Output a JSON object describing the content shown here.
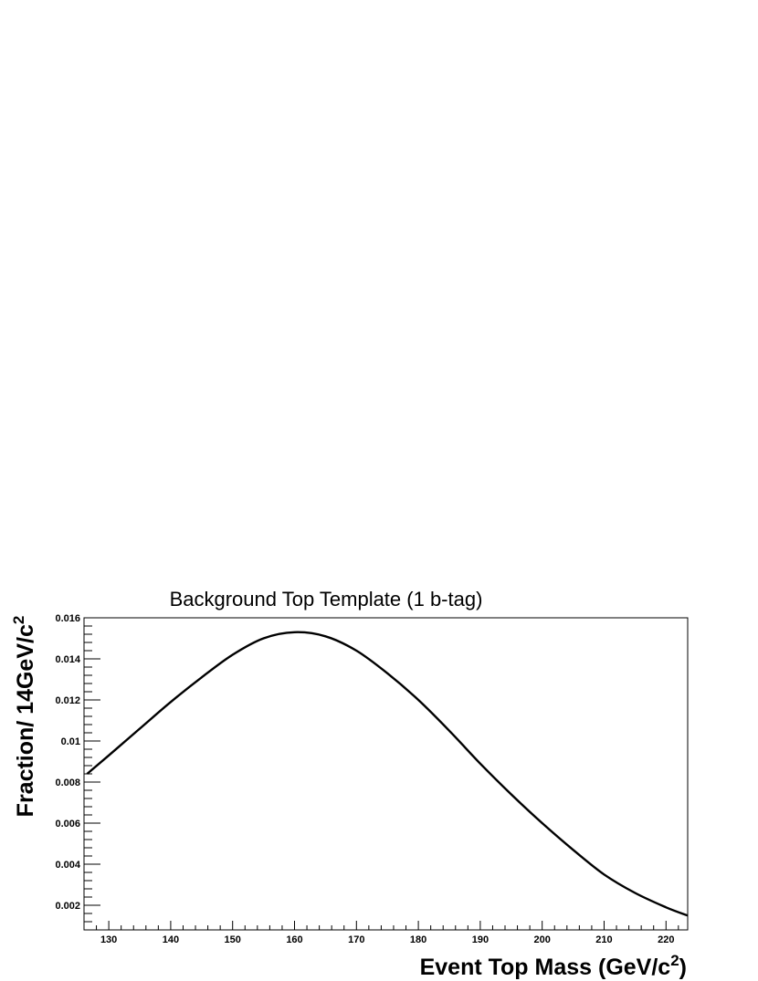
{
  "chart_data": {
    "type": "line",
    "title": "Background Top Template (1 b-tag)",
    "xlabel": "Event Top Mass (GeV/c",
    "xlabel_sup": "2",
    "xlabel_end": ")",
    "ylabel": "Fraction/ 14GeV/c",
    "ylabel_sup": "2",
    "xlim": [
      126,
      223.5
    ],
    "ylim": [
      0.0008,
      0.016
    ],
    "x_ticks": [
      130,
      140,
      150,
      160,
      170,
      180,
      190,
      200,
      210,
      220
    ],
    "x_tick_labels": [
      "130",
      "140",
      "150",
      "160",
      "170",
      "180",
      "190",
      "200",
      "210",
      "220"
    ],
    "y_ticks": [
      0.002,
      0.004,
      0.006,
      0.008,
      0.01,
      0.012,
      0.014,
      0.016
    ],
    "y_tick_labels": [
      "0.002",
      "0.004",
      "0.006",
      "0.008",
      "0.01",
      "0.012",
      "0.014",
      "0.016"
    ],
    "grid": false,
    "legend": "none",
    "series": [
      {
        "x": [
          126.5,
          130,
          135,
          140,
          145,
          150,
          155,
          160,
          165,
          170,
          175,
          180,
          185,
          190,
          195,
          200,
          205,
          210,
          215,
          220,
          223.5
        ],
        "y": [
          0.0084,
          0.0093,
          0.0106,
          0.0119,
          0.0131,
          0.0142,
          0.015,
          0.0153,
          0.0151,
          0.0144,
          0.0133,
          0.012,
          0.0105,
          0.0089,
          0.0074,
          0.006,
          0.0047,
          0.0035,
          0.0026,
          0.0019,
          0.0015
        ]
      }
    ]
  }
}
